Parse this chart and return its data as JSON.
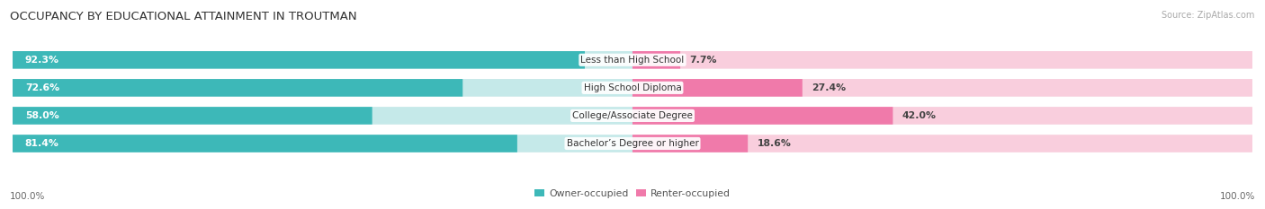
{
  "title": "OCCUPANCY BY EDUCATIONAL ATTAINMENT IN TROUTMAN",
  "source": "Source: ZipAtlas.com",
  "categories": [
    "Less than High School",
    "High School Diploma",
    "College/Associate Degree",
    "Bachelor’s Degree or higher"
  ],
  "owner_values": [
    92.3,
    72.6,
    58.0,
    81.4
  ],
  "renter_values": [
    7.7,
    27.4,
    42.0,
    18.6
  ],
  "owner_color": "#3db8b8",
  "renter_color": "#f07aaa",
  "owner_light_color": "#c5e9e9",
  "renter_light_color": "#f9cedd",
  "row_bg_color": "#ebebeb",
  "title_fontsize": 9.5,
  "label_fontsize": 7.8,
  "value_fontsize": 7.8,
  "tick_fontsize": 7.5,
  "source_fontsize": 7.0,
  "background_color": "#ffffff",
  "legend_owner_label": "Owner-occupied",
  "legend_renter_label": "Renter-occupied",
  "x_left_label": "100.0%",
  "x_right_label": "100.0%"
}
